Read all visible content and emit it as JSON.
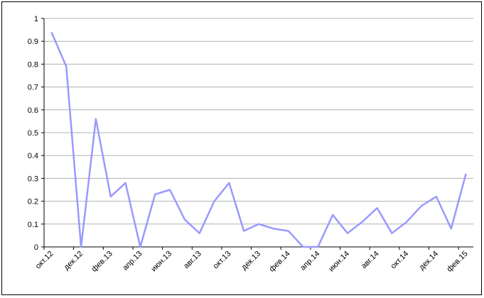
{
  "chart_data": {
    "type": "line",
    "categories": [
      "окт.12",
      null,
      "дек.12",
      null,
      "фев.13",
      null,
      "апр.13",
      null,
      "июн.13",
      null,
      "авг.13",
      null,
      "окт.13",
      null,
      "дек.13",
      null,
      "фев.14",
      null,
      "апр.14",
      null,
      "июн.14",
      null,
      "авг.14",
      null,
      "окт.14",
      null,
      "дек.14",
      null,
      "фев.15"
    ],
    "series": [
      {
        "name": null,
        "color": "#9999ff",
        "values": [
          0.94,
          0.79,
          0,
          0.56,
          0.22,
          0.28,
          0,
          0.23,
          0.25,
          0.12,
          0.06,
          0.2,
          0.28,
          0.07,
          0.1,
          0.08,
          0.07,
          0,
          0,
          0.14,
          0.06,
          0.11,
          0.17,
          0.06,
          0.11,
          0.18,
          0.22,
          0.08,
          0.32
        ]
      }
    ],
    "ylim": [
      0,
      1
    ],
    "yticks": [
      0,
      0.1,
      0.2,
      0.3,
      0.4,
      0.5,
      0.6,
      0.7,
      0.8,
      0.9,
      1
    ],
    "grid": true
  }
}
